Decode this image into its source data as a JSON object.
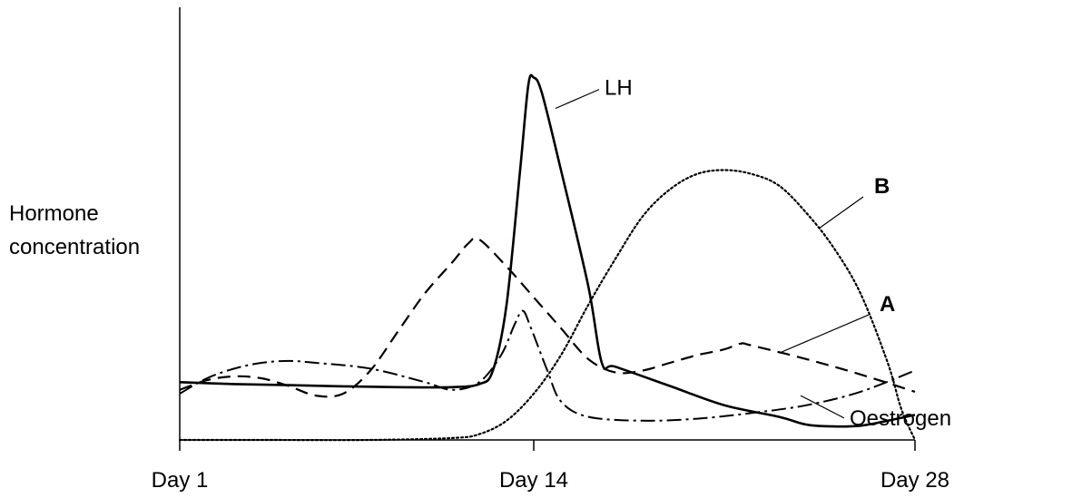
{
  "chart_data": {
    "type": "line",
    "ylabel_lines": [
      "Hormone",
      "concentration"
    ],
    "x_ticks": [
      {
        "value": 1,
        "label": "Day 1"
      },
      {
        "value": 14,
        "label": "Day 14"
      },
      {
        "value": 28,
        "label": "Day 28"
      }
    ],
    "xlim": [
      1,
      28
    ],
    "ylim": [
      0,
      100
    ],
    "series": [
      {
        "key": "lh",
        "name": "LH",
        "style": "solid",
        "color": "#000000",
        "points": [
          [
            1,
            15.0
          ],
          [
            3,
            14.5
          ],
          [
            5,
            14.2
          ],
          [
            7,
            13.9
          ],
          [
            9,
            13.7
          ],
          [
            11,
            13.7
          ],
          [
            12,
            14.5
          ],
          [
            12.5,
            18
          ],
          [
            13,
            35
          ],
          [
            13.5,
            70
          ],
          [
            13.8,
            92
          ],
          [
            14,
            94
          ],
          [
            14.3,
            90
          ],
          [
            15,
            70
          ],
          [
            16,
            40
          ],
          [
            16.5,
            20
          ],
          [
            17,
            19
          ],
          [
            19,
            14
          ],
          [
            21,
            9
          ],
          [
            23,
            6
          ],
          [
            24,
            4
          ],
          [
            25,
            3.5
          ],
          [
            26,
            3.7
          ],
          [
            27,
            5
          ],
          [
            28,
            6.5
          ]
        ],
        "label_text": "LH",
        "label_at": [
          14.8,
          86
        ],
        "label_text_pos": [
          16.6,
          89.5
        ]
      },
      {
        "key": "oestrogen",
        "name": "Oestrogen",
        "style": "dashdot",
        "color": "#000000",
        "points": [
          [
            1,
            12
          ],
          [
            2,
            16
          ],
          [
            3,
            18.5
          ],
          [
            4,
            20
          ],
          [
            5,
            20.5
          ],
          [
            6,
            20
          ],
          [
            8,
            18.5
          ],
          [
            10,
            15
          ],
          [
            11,
            13
          ],
          [
            12,
            15
          ],
          [
            12.8,
            22
          ],
          [
            13.3,
            30
          ],
          [
            13.6,
            33.5
          ],
          [
            13.9,
            29
          ],
          [
            14.5,
            18
          ],
          [
            15,
            10
          ],
          [
            16,
            6
          ],
          [
            18,
            5
          ],
          [
            20,
            5.5
          ],
          [
            22,
            7
          ],
          [
            24,
            9
          ],
          [
            26,
            12.5
          ],
          [
            28,
            18
          ]
        ],
        "label_text": "Oestrogen",
        "label_at": [
          23.8,
          11.5
        ],
        "label_text_pos": [
          25.6,
          3.8
        ]
      },
      {
        "key": "a",
        "name": "A",
        "style": "dashed",
        "color": "#000000",
        "points": [
          [
            1,
            13
          ],
          [
            2,
            15.5
          ],
          [
            3,
            16.5
          ],
          [
            4,
            16
          ],
          [
            5,
            14
          ],
          [
            6,
            11.5
          ],
          [
            7,
            12
          ],
          [
            8,
            18
          ],
          [
            9,
            28
          ],
          [
            10,
            38
          ],
          [
            11,
            46
          ],
          [
            11.6,
            51
          ],
          [
            12,
            52
          ],
          [
            13,
            45
          ],
          [
            14,
            37
          ],
          [
            15,
            29
          ],
          [
            16,
            21
          ],
          [
            17,
            17.5
          ],
          [
            18,
            18
          ],
          [
            19,
            20
          ],
          [
            20,
            22
          ],
          [
            21,
            23.5
          ],
          [
            21.6,
            25
          ],
          [
            22,
            24.5
          ],
          [
            24,
            21
          ],
          [
            26,
            17
          ],
          [
            28,
            12.5
          ]
        ],
        "label_text": "A",
        "label_at": [
          23.0,
          22.5
        ],
        "label_text_pos": [
          26.7,
          33.4
        ]
      },
      {
        "key": "b",
        "name": "B",
        "style": "dotted",
        "color": "#000000",
        "points": [
          [
            1,
            0
          ],
          [
            4,
            0
          ],
          [
            8,
            0
          ],
          [
            11,
            0.5
          ],
          [
            12,
            1.5
          ],
          [
            13,
            5
          ],
          [
            14,
            12
          ],
          [
            15,
            22
          ],
          [
            16,
            35
          ],
          [
            17,
            47
          ],
          [
            18,
            58
          ],
          [
            19,
            65
          ],
          [
            20,
            69
          ],
          [
            21,
            70
          ],
          [
            22,
            69
          ],
          [
            23,
            66
          ],
          [
            24,
            59
          ],
          [
            25,
            50
          ],
          [
            26,
            38
          ],
          [
            27,
            20
          ],
          [
            27.5,
            8
          ],
          [
            28,
            0
          ]
        ],
        "label_text": "B",
        "label_at": [
          24.5,
          55
        ],
        "label_text_pos": [
          26.5,
          64
        ]
      }
    ]
  }
}
